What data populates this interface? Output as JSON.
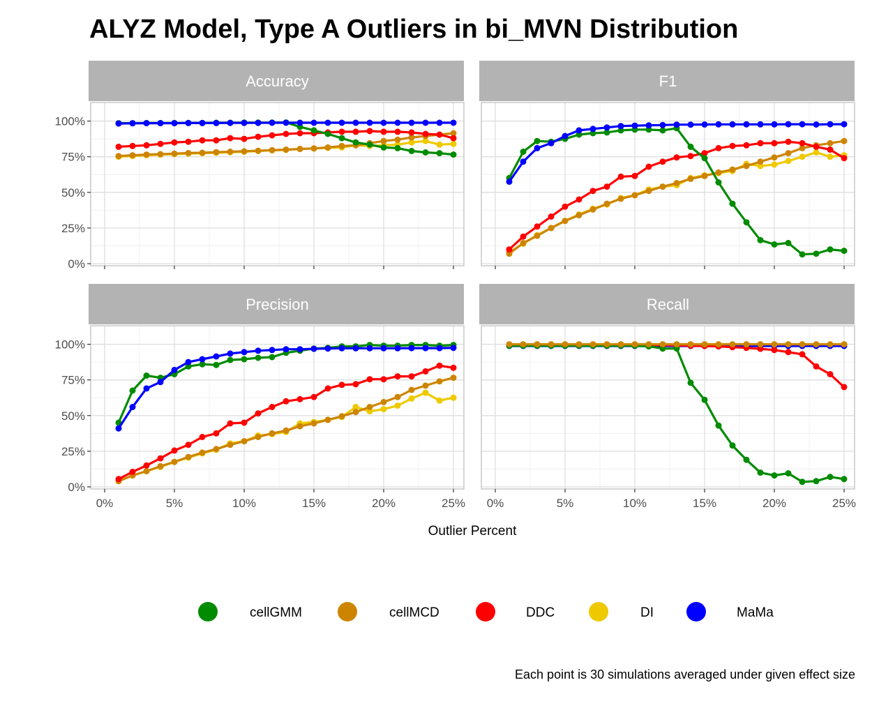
{
  "chart_data": {
    "type": "line",
    "title": "ALYZ Model, Type A Outliers in bi_MVN Distribution",
    "xlabel": "Outlier Percent",
    "ylabel": "",
    "caption": "Each point is 30 simulations averaged under given effect size",
    "x": [
      1,
      2,
      3,
      4,
      5,
      6,
      7,
      8,
      9,
      10,
      11,
      12,
      13,
      14,
      15,
      16,
      17,
      18,
      19,
      20,
      21,
      22,
      23,
      24,
      25
    ],
    "xlim": [
      0,
      25.5
    ],
    "ylim": [
      0,
      1.0
    ],
    "x_ticks": [
      0,
      5,
      10,
      15,
      20,
      25
    ],
    "x_tick_labels": [
      "0%",
      "5%",
      "10%",
      "15%",
      "20%",
      "25%"
    ],
    "y_ticks": [
      0,
      0.25,
      0.5,
      0.75,
      1.0
    ],
    "y_tick_labels": [
      "0%",
      "25%",
      "50%",
      "75%",
      "100%"
    ],
    "grid": true,
    "legend_position": "bottom",
    "legend": [
      {
        "name": "cellGMM",
        "color": "#008B00"
      },
      {
        "name": "cellMCD",
        "color": "#CD8500"
      },
      {
        "name": "DDC",
        "color": "#FF0000"
      },
      {
        "name": "DI",
        "color": "#EEC900"
      },
      {
        "name": "MaMa",
        "color": "#0000FF"
      }
    ],
    "panels": [
      {
        "name": "Accuracy",
        "series": [
          {
            "name": "DI",
            "color": "#EEC900",
            "values": [
              0.75,
              0.755,
              0.76,
              0.765,
              0.768,
              0.772,
              0.775,
              0.778,
              0.781,
              0.785,
              0.79,
              0.795,
              0.798,
              0.805,
              0.808,
              0.812,
              0.815,
              0.83,
              0.825,
              0.83,
              0.835,
              0.85,
              0.86,
              0.835,
              0.84
            ]
          },
          {
            "name": "cellMCD",
            "color": "#CD8500",
            "values": [
              0.755,
              0.76,
              0.765,
              0.768,
              0.772,
              0.776,
              0.778,
              0.782,
              0.785,
              0.788,
              0.792,
              0.796,
              0.8,
              0.804,
              0.808,
              0.815,
              0.825,
              0.83,
              0.845,
              0.86,
              0.87,
              0.885,
              0.895,
              0.905,
              0.915
            ]
          },
          {
            "name": "DDC",
            "color": "#FF0000",
            "values": [
              0.82,
              0.825,
              0.83,
              0.84,
              0.85,
              0.855,
              0.865,
              0.865,
              0.88,
              0.875,
              0.89,
              0.9,
              0.91,
              0.915,
              0.915,
              0.92,
              0.925,
              0.925,
              0.93,
              0.925,
              0.925,
              0.92,
              0.91,
              0.905,
              0.88
            ]
          },
          {
            "name": "cellGMM",
            "color": "#008B00",
            "values": [
              0.985,
              0.985,
              0.986,
              0.986,
              0.986,
              0.987,
              0.987,
              0.988,
              0.988,
              0.989,
              0.989,
              0.989,
              0.99,
              0.96,
              0.935,
              0.91,
              0.88,
              0.85,
              0.835,
              0.815,
              0.81,
              0.79,
              0.78,
              0.775,
              0.765
            ]
          },
          {
            "name": "MaMa",
            "color": "#0000FF",
            "values": [
              0.983,
              0.984,
              0.985,
              0.985,
              0.985,
              0.986,
              0.986,
              0.986,
              0.987,
              0.987,
              0.987,
              0.988,
              0.988,
              0.988,
              0.988,
              0.988,
              0.988,
              0.988,
              0.988,
              0.988,
              0.988,
              0.988,
              0.988,
              0.988,
              0.988
            ]
          }
        ]
      },
      {
        "name": "F1",
        "series": [
          {
            "name": "DI",
            "color": "#EEC900",
            "values": [
              0.08,
              0.14,
              0.2,
              0.25,
              0.3,
              0.345,
              0.385,
              0.415,
              0.46,
              0.48,
              0.52,
              0.54,
              0.55,
              0.6,
              0.62,
              0.635,
              0.65,
              0.7,
              0.685,
              0.695,
              0.72,
              0.75,
              0.78,
              0.75,
              0.76
            ]
          },
          {
            "name": "cellMCD",
            "color": "#CD8500",
            "values": [
              0.07,
              0.145,
              0.195,
              0.25,
              0.3,
              0.34,
              0.38,
              0.42,
              0.455,
              0.48,
              0.51,
              0.54,
              0.565,
              0.595,
              0.615,
              0.64,
              0.66,
              0.685,
              0.715,
              0.745,
              0.775,
              0.81,
              0.83,
              0.845,
              0.86
            ]
          },
          {
            "name": "DDC",
            "color": "#FF0000",
            "values": [
              0.1,
              0.19,
              0.26,
              0.33,
              0.4,
              0.45,
              0.51,
              0.54,
              0.61,
              0.615,
              0.68,
              0.715,
              0.745,
              0.755,
              0.775,
              0.81,
              0.825,
              0.83,
              0.845,
              0.845,
              0.855,
              0.845,
              0.82,
              0.8,
              0.74
            ]
          },
          {
            "name": "cellGMM",
            "color": "#008B00",
            "values": [
              0.6,
              0.785,
              0.86,
              0.855,
              0.875,
              0.905,
              0.915,
              0.92,
              0.935,
              0.94,
              0.94,
              0.935,
              0.95,
              0.82,
              0.74,
              0.57,
              0.42,
              0.29,
              0.165,
              0.135,
              0.145,
              0.065,
              0.07,
              0.1,
              0.09
            ]
          },
          {
            "name": "MaMa",
            "color": "#0000FF",
            "values": [
              0.575,
              0.715,
              0.81,
              0.845,
              0.895,
              0.935,
              0.945,
              0.955,
              0.965,
              0.968,
              0.97,
              0.972,
              0.975,
              0.975,
              0.976,
              0.977,
              0.977,
              0.977,
              0.977,
              0.977,
              0.978,
              0.978,
              0.976,
              0.978,
              0.978
            ]
          }
        ]
      },
      {
        "name": "Precision",
        "series": [
          {
            "name": "DI",
            "color": "#EEC900",
            "values": [
              0.04,
              0.08,
              0.11,
              0.14,
              0.175,
              0.205,
              0.235,
              0.26,
              0.305,
              0.32,
              0.36,
              0.37,
              0.385,
              0.445,
              0.455,
              0.47,
              0.49,
              0.56,
              0.53,
              0.545,
              0.57,
              0.62,
              0.66,
              0.605,
              0.625
            ]
          },
          {
            "name": "cellMCD",
            "color": "#CD8500",
            "values": [
              0.04,
              0.08,
              0.11,
              0.145,
              0.175,
              0.21,
              0.24,
              0.265,
              0.295,
              0.32,
              0.35,
              0.375,
              0.395,
              0.425,
              0.445,
              0.47,
              0.495,
              0.525,
              0.56,
              0.595,
              0.63,
              0.68,
              0.71,
              0.74,
              0.765
            ]
          },
          {
            "name": "DDC",
            "color": "#FF0000",
            "values": [
              0.055,
              0.105,
              0.15,
              0.2,
              0.255,
              0.295,
              0.35,
              0.375,
              0.445,
              0.45,
              0.515,
              0.56,
              0.6,
              0.615,
              0.63,
              0.69,
              0.715,
              0.72,
              0.755,
              0.755,
              0.775,
              0.775,
              0.81,
              0.85,
              0.835
            ]
          },
          {
            "name": "cellGMM",
            "color": "#008B00",
            "values": [
              0.45,
              0.675,
              0.78,
              0.765,
              0.79,
              0.845,
              0.86,
              0.855,
              0.89,
              0.895,
              0.905,
              0.91,
              0.94,
              0.955,
              0.97,
              0.975,
              0.985,
              0.985,
              0.995,
              0.99,
              0.99,
              0.995,
              0.995,
              0.99,
              0.995
            ]
          },
          {
            "name": "MaMa",
            "color": "#0000FF",
            "values": [
              0.41,
              0.56,
              0.69,
              0.735,
              0.82,
              0.875,
              0.895,
              0.915,
              0.935,
              0.945,
              0.955,
              0.96,
              0.965,
              0.965,
              0.968,
              0.97,
              0.972,
              0.972,
              0.972,
              0.972,
              0.972,
              0.973,
              0.973,
              0.973,
              0.975
            ]
          }
        ]
      },
      {
        "name": "Recall",
        "series": [
          {
            "name": "DI",
            "color": "#EEC900",
            "values": [
              0.998,
              0.998,
              0.998,
              0.998,
              0.998,
              0.998,
              0.998,
              0.998,
              0.998,
              0.998,
              0.998,
              0.998,
              0.998,
              0.998,
              0.998,
              0.998,
              0.998,
              0.998,
              0.998,
              0.998,
              0.998,
              0.998,
              0.998,
              0.998,
              0.998
            ]
          },
          {
            "name": "MaMa",
            "color": "#0000FF",
            "values": [
              0.988,
              0.988,
              0.988,
              0.988,
              0.988,
              0.988,
              0.988,
              0.988,
              0.988,
              0.988,
              0.988,
              0.988,
              0.988,
              0.988,
              0.988,
              0.988,
              0.988,
              0.988,
              0.988,
              0.988,
              0.988,
              0.988,
              0.988,
              0.988,
              0.988
            ]
          },
          {
            "name": "DDC",
            "color": "#FF0000",
            "values": [
              0.998,
              0.998,
              0.998,
              0.998,
              0.998,
              0.998,
              0.998,
              0.998,
              0.997,
              0.996,
              0.995,
              0.994,
              0.992,
              0.99,
              0.988,
              0.985,
              0.98,
              0.975,
              0.968,
              0.96,
              0.945,
              0.93,
              0.845,
              0.79,
              0.7
            ]
          },
          {
            "name": "cellGMM",
            "color": "#008B00",
            "values": [
              0.99,
              0.99,
              0.99,
              0.99,
              0.99,
              0.99,
              0.99,
              0.99,
              0.99,
              0.99,
              0.985,
              0.97,
              0.97,
              0.73,
              0.61,
              0.43,
              0.29,
              0.19,
              0.1,
              0.08,
              0.095,
              0.035,
              0.04,
              0.07,
              0.055
            ]
          },
          {
            "name": "cellMCD",
            "color": "#CD8500",
            "values": [
              1.0,
              1.0,
              1.0,
              1.0,
              1.0,
              1.0,
              1.0,
              1.0,
              1.0,
              1.0,
              1.0,
              1.0,
              1.0,
              1.0,
              1.0,
              1.0,
              1.0,
              1.0,
              1.0,
              1.0,
              1.0,
              1.0,
              1.0,
              1.0,
              1.0
            ]
          }
        ]
      }
    ]
  }
}
